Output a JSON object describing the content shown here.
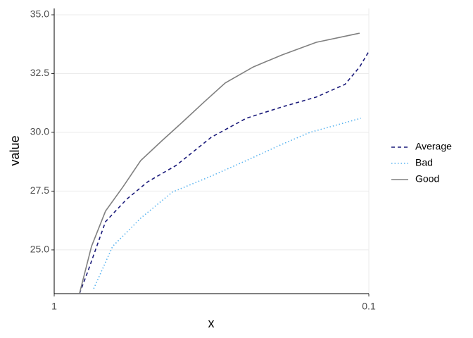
{
  "chart_data": {
    "type": "line",
    "x_label": "x",
    "y_label": "value",
    "x_scale": "log",
    "xlim": [
      1,
      0.1
    ],
    "xticks": [
      1,
      0.1
    ],
    "ylim": [
      23.14,
      35.27
    ],
    "yticks": [
      {
        "value": 25,
        "label": "25.0"
      },
      {
        "value": 27.5,
        "label": "27.5"
      },
      {
        "value": 30,
        "label": "30.0"
      },
      {
        "value": 32.5,
        "label": "32.5"
      },
      {
        "value": 35,
        "label": "35.0"
      }
    ],
    "grid": true,
    "legend": "right",
    "series": [
      {
        "name": "Average",
        "color": "#1a1a7a",
        "dash": "dashed",
        "x": [
          0.831,
          0.781,
          0.687,
          0.588,
          0.504,
          0.41,
          0.317,
          0.245,
          0.189,
          0.147,
          0.119,
          0.107,
          0.1
        ],
        "values": [
          23.14,
          24.1,
          26.2,
          27.16,
          27.9,
          28.59,
          29.79,
          30.6,
          31.08,
          31.5,
          32.04,
          32.78,
          33.44
        ]
      },
      {
        "name": "Bad",
        "color": "#5ab4f0",
        "dash": "dotted",
        "x": [
          0.749,
          0.652,
          0.531,
          0.421,
          0.317,
          0.245,
          0.189,
          0.154,
          0.125,
          0.106
        ],
        "values": [
          23.35,
          25.15,
          26.35,
          27.46,
          28.14,
          28.8,
          29.49,
          30.0,
          30.33,
          30.6
        ]
      },
      {
        "name": "Good",
        "color": "#808080",
        "dash": "solid",
        "x": [
          0.831,
          0.761,
          0.687,
          0.604,
          0.531,
          0.455,
          0.39,
          0.334,
          0.286,
          0.233,
          0.189,
          0.147,
          0.107
        ],
        "values": [
          23.14,
          25.15,
          26.65,
          27.69,
          28.8,
          29.64,
          30.45,
          31.29,
          32.1,
          32.78,
          33.29,
          33.83,
          34.22
        ]
      }
    ]
  }
}
